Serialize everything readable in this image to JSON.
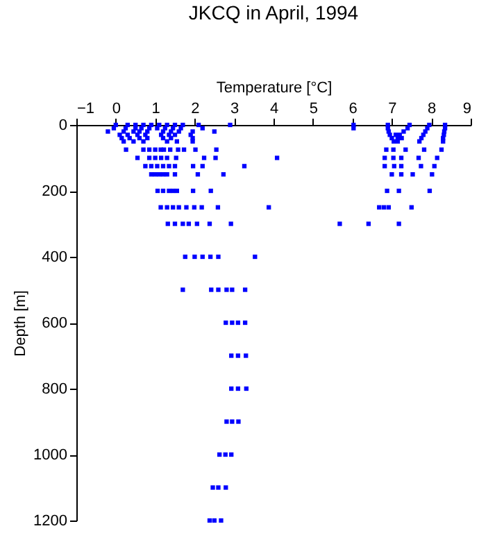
{
  "chart_data": {
    "type": "scatter",
    "title": "JKCQ in April, 1994",
    "xlabel": "Temperature [°C]",
    "ylabel": "Depth [m]",
    "xlim": [
      -1,
      9
    ],
    "xticks": [
      -1,
      0,
      1,
      2,
      3,
      4,
      5,
      6,
      7,
      8,
      9
    ],
    "ylim": [
      1200,
      0
    ],
    "yticks": [
      0,
      200,
      400,
      600,
      800,
      1000,
      1200
    ],
    "grid": false,
    "marker": "square",
    "series": [
      {
        "color": "#0000ff",
        "x": [
          0.0,
          0.3,
          0.5,
          0.7,
          0.9,
          1.1,
          1.3,
          1.5,
          1.7,
          2.1,
          2.9,
          6.03,
          6.9,
          7.45,
          7.95,
          8.35,
          -0.05,
          0.25,
          0.5,
          0.65,
          0.85,
          1.05,
          1.25,
          1.45,
          1.65,
          2.2,
          6.03,
          6.9,
          7.4,
          7.9,
          8.35,
          -0.2,
          0.2,
          0.45,
          0.6,
          0.8,
          1.2,
          1.4,
          1.6,
          1.95,
          2.5,
          6.92,
          7.3,
          7.85,
          8.33,
          0.1,
          0.3,
          0.55,
          0.75,
          1.15,
          1.35,
          1.5,
          1.9,
          6.95,
          7.1,
          7.2,
          7.8,
          8.32,
          0.15,
          0.35,
          0.6,
          0.8,
          1.2,
          1.4,
          1.95,
          7.0,
          7.15,
          7.25,
          7.75,
          8.3,
          0.2,
          0.45,
          0.7,
          1.3,
          1.55,
          1.95,
          7.05,
          7.15,
          7.7,
          8.3,
          0.26,
          0.7,
          0.85,
          1.0,
          1.14,
          1.22,
          1.38,
          1.58,
          1.73,
          2.02,
          2.55,
          6.86,
          7.04,
          7.35,
          7.82,
          8.26,
          0.55,
          0.85,
          1.0,
          1.15,
          1.3,
          1.53,
          2.24,
          2.53,
          4.09,
          6.82,
          7.04,
          7.24,
          7.68,
          8.15,
          0.75,
          0.9,
          1.05,
          1.2,
          1.35,
          1.5,
          1.96,
          2.2,
          3.26,
          6.82,
          7.06,
          7.24,
          7.74,
          8.08,
          0.9,
          1.0,
          1.1,
          1.2,
          1.3,
          1.5,
          2.08,
          2.73,
          7.0,
          7.24,
          7.53,
          8.02,
          1.06,
          1.2,
          1.35,
          1.45,
          1.55,
          1.96,
          2.41,
          6.88,
          7.18,
          7.96,
          1.14,
          1.3,
          1.45,
          1.6,
          1.79,
          1.99,
          2.18,
          2.59,
          3.88,
          6.68,
          6.8,
          6.92,
          7.5,
          1.32,
          1.5,
          1.7,
          1.85,
          2.06,
          2.38,
          2.92,
          5.68,
          6.41,
          7.18,
          1.76,
          2.0,
          2.2,
          2.4,
          2.6,
          3.53,
          1.7,
          2.42,
          2.6,
          2.81,
          2.95,
          3.28,
          2.79,
          2.95,
          3.1,
          3.28,
          2.93,
          3.1,
          3.3,
          2.93,
          3.1,
          3.31,
          2.81,
          2.95,
          3.11,
          2.63,
          2.78,
          2.93,
          2.46,
          2.6,
          2.79,
          2.38,
          2.5,
          2.67
        ],
        "values": [
          0,
          0,
          0,
          0,
          0,
          0,
          0,
          0,
          0,
          0,
          0,
          0,
          0,
          0,
          0,
          0,
          10,
          10,
          10,
          10,
          10,
          10,
          10,
          10,
          10,
          10,
          10,
          10,
          10,
          10,
          10,
          20,
          20,
          20,
          20,
          20,
          20,
          20,
          20,
          20,
          20,
          20,
          20,
          20,
          20,
          30,
          30,
          30,
          30,
          30,
          30,
          30,
          30,
          30,
          30,
          30,
          30,
          30,
          40,
          40,
          40,
          40,
          40,
          40,
          40,
          40,
          40,
          40,
          40,
          40,
          50,
          50,
          50,
          50,
          50,
          50,
          50,
          50,
          50,
          50,
          75,
          75,
          75,
          75,
          75,
          75,
          75,
          75,
          75,
          75,
          75,
          75,
          75,
          75,
          75,
          75,
          100,
          100,
          100,
          100,
          100,
          100,
          100,
          100,
          100,
          100,
          100,
          100,
          100,
          100,
          125,
          125,
          125,
          125,
          125,
          125,
          125,
          125,
          125,
          125,
          125,
          125,
          125,
          125,
          150,
          150,
          150,
          150,
          150,
          150,
          150,
          150,
          150,
          150,
          150,
          150,
          200,
          200,
          200,
          200,
          200,
          200,
          200,
          200,
          200,
          200,
          250,
          250,
          250,
          250,
          250,
          250,
          250,
          250,
          250,
          250,
          250,
          250,
          250,
          300,
          300,
          300,
          300,
          300,
          300,
          300,
          300,
          300,
          300,
          400,
          400,
          400,
          400,
          400,
          400,
          500,
          500,
          500,
          500,
          500,
          500,
          600,
          600,
          600,
          600,
          700,
          700,
          700,
          800,
          800,
          800,
          900,
          900,
          900,
          1000,
          1000,
          1000,
          1100,
          1100,
          1100,
          1200,
          1200,
          1200
        ]
      }
    ]
  }
}
